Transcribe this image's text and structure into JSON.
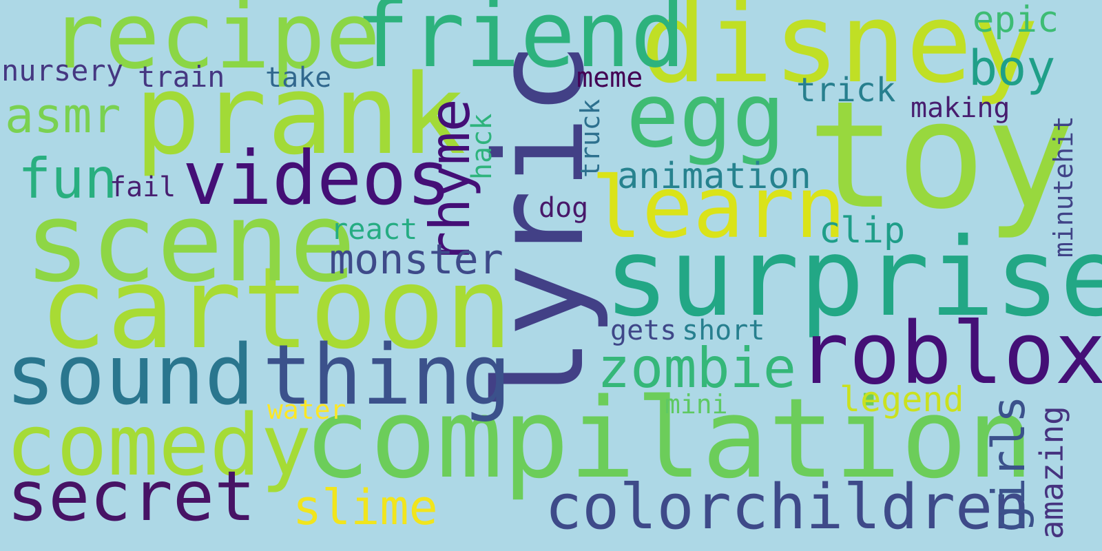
{
  "background": "#add8e6",
  "words": [
    {
      "id": "toy",
      "text": "toy",
      "color": "#98d83e"
    },
    {
      "id": "lyric",
      "text": "lyric",
      "color": "#424086"
    },
    {
      "id": "compilation",
      "text": "compilation",
      "color": "#6ccd5a"
    },
    {
      "id": "surprise",
      "text": "surprise",
      "color": "#22a785"
    },
    {
      "id": "cartoon",
      "text": "cartoon",
      "color": "#a8db34"
    },
    {
      "id": "prank",
      "text": "prank",
      "color": "#a2da37"
    },
    {
      "id": "scene",
      "text": "scene",
      "color": "#8ed645"
    },
    {
      "id": "disney",
      "text": "disney",
      "color": "#c0df25"
    },
    {
      "id": "friend",
      "text": "friend",
      "color": "#2db27d"
    },
    {
      "id": "recipe",
      "text": "recipe",
      "color": "#8bd646"
    },
    {
      "id": "comedy",
      "text": "comedy",
      "color": "#a5db36"
    },
    {
      "id": "roblox",
      "text": "roblox",
      "color": "#440f76"
    },
    {
      "id": "sound",
      "text": "sound",
      "color": "#2a768e"
    },
    {
      "id": "thing",
      "text": "thing",
      "color": "#3b518b"
    },
    {
      "id": "videos",
      "text": "videos",
      "color": "#440f76"
    },
    {
      "id": "learn",
      "text": "learn",
      "color": "#dae319"
    },
    {
      "id": "secret",
      "text": "secret",
      "color": "#471365"
    },
    {
      "id": "egg",
      "text": "egg",
      "color": "#3fbc73"
    },
    {
      "id": "rhyme",
      "text": "rhyme",
      "color": "#440f76"
    },
    {
      "id": "colorchildren",
      "text": "colorchildren",
      "color": "#3e4a89"
    },
    {
      "id": "zombie",
      "text": "zombie",
      "color": "#35b779"
    },
    {
      "id": "fun",
      "text": "fun",
      "color": "#29af7f"
    },
    {
      "id": "asmr",
      "text": "asmr",
      "color": "#7ad151"
    },
    {
      "id": "monster",
      "text": "monster",
      "color": "#3e4a89"
    },
    {
      "id": "slime",
      "text": "slime",
      "color": "#f1e51d"
    },
    {
      "id": "girls",
      "text": "girls",
      "color": "#3b518b"
    },
    {
      "id": "boy",
      "text": "boy",
      "color": "#1f9f88"
    },
    {
      "id": "animation",
      "text": "animation",
      "color": "#26828e"
    },
    {
      "id": "epic",
      "text": "epic",
      "color": "#3dbc74"
    },
    {
      "id": "amazing",
      "text": "amazing",
      "color": "#46337f"
    },
    {
      "id": "clip",
      "text": "clip",
      "color": "#1f9e89"
    },
    {
      "id": "trick",
      "text": "trick",
      "color": "#277f8e"
    },
    {
      "id": "legend",
      "text": "legend",
      "color": "#cae11f"
    },
    {
      "id": "react",
      "text": "react",
      "color": "#25ac82"
    },
    {
      "id": "hack",
      "text": "hack",
      "color": "#2eb37c"
    },
    {
      "id": "making",
      "text": "making",
      "color": "#481d6f"
    },
    {
      "id": "nursery",
      "text": "nursery",
      "color": "#453781"
    },
    {
      "id": "train",
      "text": "train",
      "color": "#453781"
    },
    {
      "id": "take",
      "text": "take",
      "color": "#31688e"
    },
    {
      "id": "meme",
      "text": "meme",
      "color": "#440154"
    },
    {
      "id": "fail",
      "text": "fail",
      "color": "#481f70"
    },
    {
      "id": "dog",
      "text": "dog",
      "color": "#48186a"
    },
    {
      "id": "truck",
      "text": "truck",
      "color": "#2d708e"
    },
    {
      "id": "gets",
      "text": "gets",
      "color": "#3f4788"
    },
    {
      "id": "short",
      "text": "short",
      "color": "#277f8e"
    },
    {
      "id": "water",
      "text": "water",
      "color": "#fde725"
    },
    {
      "id": "mini",
      "text": "mini",
      "color": "#5ec962"
    },
    {
      "id": "minutehit",
      "text": "minutehit",
      "color": "#404387"
    }
  ]
}
